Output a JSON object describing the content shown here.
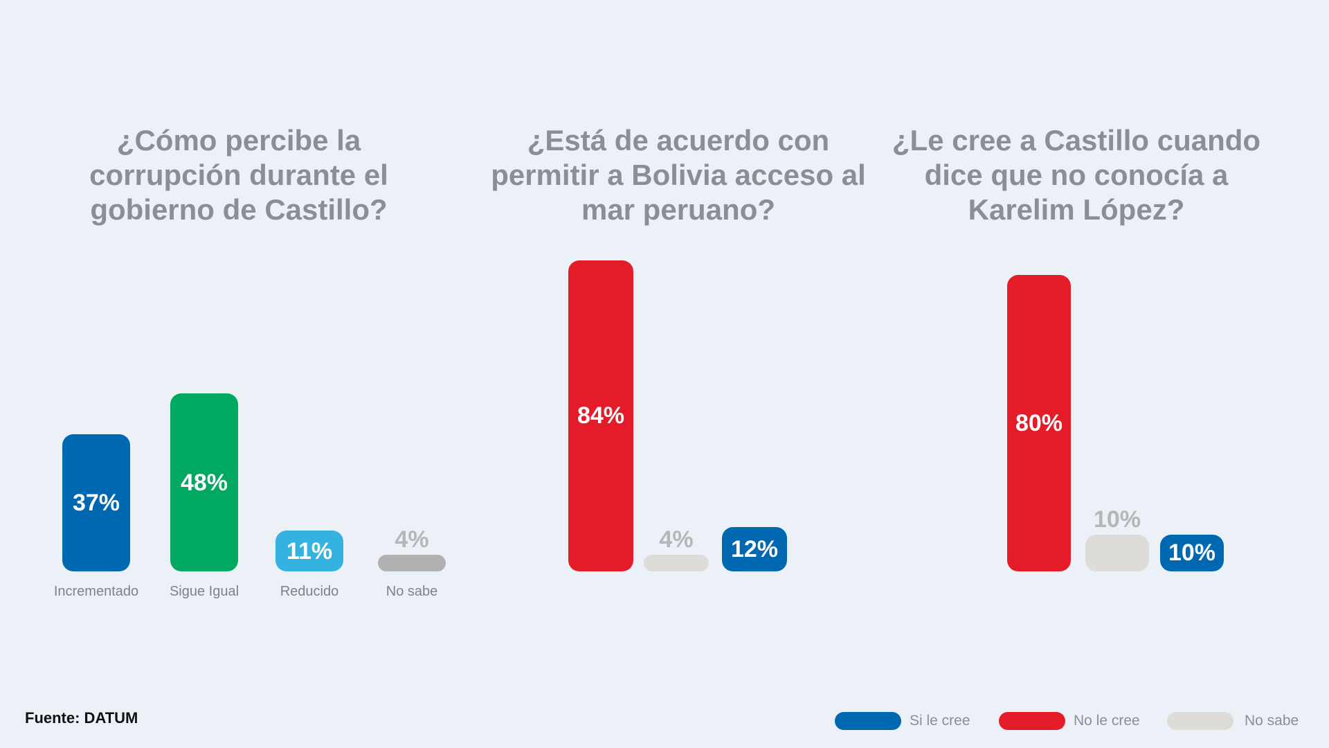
{
  "colors": {
    "blue": "#0067b1",
    "green": "#00a862",
    "cyan": "#35b3e0",
    "gray": "#b1b1b1",
    "red": "#e41b28",
    "lightgray": "#dedcd8",
    "title": "#8b8e94"
  },
  "source_text": "Fuente: DATUM",
  "chart_data": [
    {
      "type": "bar",
      "title": "¿Cómo percibe la corrupción durante el gobierno de Castillo?",
      "categories": [
        "Incrementado",
        "Sigue Igual",
        "Reducido",
        "No sabe"
      ],
      "values": [
        37,
        48,
        11,
        4
      ],
      "labels": [
        "37%",
        "48%",
        "11%",
        "4%"
      ],
      "colors": [
        "#0067b1",
        "#00a862",
        "#35b3e0",
        "#b1b1b1"
      ],
      "ylim": [
        0,
        84
      ]
    },
    {
      "type": "bar",
      "title": "¿Está de acuerdo con permitir a Bolivia acceso al mar peruano?",
      "categories": [
        "No le cree",
        "No sabe",
        "Si le cree"
      ],
      "values": [
        84,
        4,
        12
      ],
      "labels": [
        "84%",
        "4%",
        "12%"
      ],
      "colors": [
        "#e41b28",
        "#dedcd8",
        "#0067b1"
      ],
      "ylim": [
        0,
        84
      ]
    },
    {
      "type": "bar",
      "title": "¿Le cree a Castillo cuando dice que no conocía a Karelim López?",
      "categories": [
        "No le cree",
        "No sabe",
        "Si le cree"
      ],
      "values": [
        80,
        10,
        10
      ],
      "labels": [
        "80%",
        "10%",
        "10%"
      ],
      "colors": [
        "#e41b28",
        "#dedcd8",
        "#0067b1"
      ],
      "ylim": [
        0,
        84
      ]
    }
  ],
  "legend": [
    {
      "label": "Si le cree",
      "color": "#0067b1"
    },
    {
      "label": "No le cree",
      "color": "#e41b28"
    },
    {
      "label": "No sabe",
      "color": "#dedcd8"
    }
  ]
}
